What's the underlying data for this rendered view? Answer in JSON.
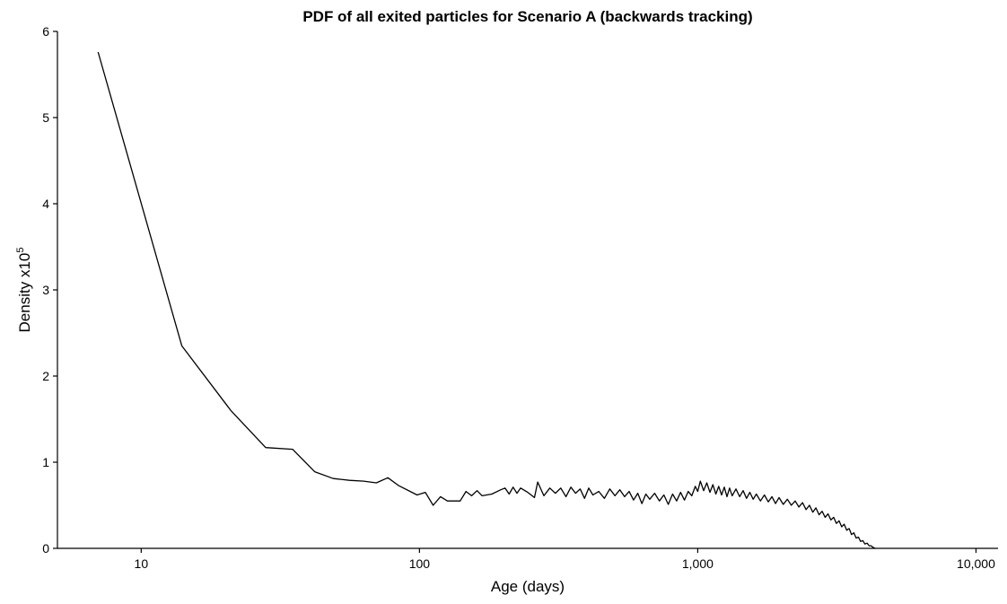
{
  "chart_data": {
    "type": "line",
    "title": "PDF of all exited particles for Scenario A (backwards tracking)",
    "xlabel": "Age (days)",
    "ylabel": "Density  x10",
    "ylabel_superscript": "5",
    "x_scale": "log",
    "xlim": [
      5,
      12000
    ],
    "ylim": [
      0,
      6
    ],
    "x_ticks": [
      {
        "value": 10,
        "label": "10"
      },
      {
        "value": 100,
        "label": "100"
      },
      {
        "value": 1000,
        "label": "1,000"
      },
      {
        "value": 10000,
        "label": "10,000"
      }
    ],
    "y_ticks": [
      {
        "value": 0,
        "label": "0"
      },
      {
        "value": 1,
        "label": "1"
      },
      {
        "value": 2,
        "label": "2"
      },
      {
        "value": 3,
        "label": "3"
      },
      {
        "value": 4,
        "label": "4"
      },
      {
        "value": 5,
        "label": "5"
      },
      {
        "value": 6,
        "label": "6"
      }
    ],
    "grid": false,
    "series": [
      {
        "color": "#000000",
        "points": [
          [
            7,
            5.76
          ],
          [
            14,
            2.35
          ],
          [
            21,
            1.6
          ],
          [
            28,
            1.17
          ],
          [
            35,
            1.15
          ],
          [
            42,
            0.89
          ],
          [
            49,
            0.81
          ],
          [
            56,
            0.79
          ],
          [
            63,
            0.78
          ],
          [
            70,
            0.76
          ],
          [
            77,
            0.82
          ],
          [
            84,
            0.73
          ],
          [
            98,
            0.62
          ],
          [
            105,
            0.65
          ],
          [
            112,
            0.5
          ],
          [
            119,
            0.6
          ],
          [
            126,
            0.55
          ],
          [
            140,
            0.55
          ],
          [
            147,
            0.66
          ],
          [
            154,
            0.61
          ],
          [
            161,
            0.67
          ],
          [
            168,
            0.61
          ],
          [
            182,
            0.63
          ],
          [
            196,
            0.68
          ],
          [
            203,
            0.7
          ],
          [
            210,
            0.63
          ],
          [
            217,
            0.71
          ],
          [
            224,
            0.64
          ],
          [
            231,
            0.7
          ],
          [
            245,
            0.65
          ],
          [
            259,
            0.59
          ],
          [
            266,
            0.77
          ],
          [
            280,
            0.61
          ],
          [
            294,
            0.7
          ],
          [
            308,
            0.64
          ],
          [
            322,
            0.7
          ],
          [
            336,
            0.6
          ],
          [
            350,
            0.71
          ],
          [
            364,
            0.64
          ],
          [
            378,
            0.69
          ],
          [
            392,
            0.58
          ],
          [
            406,
            0.7
          ],
          [
            420,
            0.62
          ],
          [
            441,
            0.66
          ],
          [
            462,
            0.58
          ],
          [
            483,
            0.69
          ],
          [
            504,
            0.61
          ],
          [
            525,
            0.68
          ],
          [
            546,
            0.6
          ],
          [
            567,
            0.66
          ],
          [
            588,
            0.56
          ],
          [
            609,
            0.64
          ],
          [
            630,
            0.52
          ],
          [
            651,
            0.63
          ],
          [
            672,
            0.57
          ],
          [
            700,
            0.64
          ],
          [
            728,
            0.55
          ],
          [
            756,
            0.62
          ],
          [
            784,
            0.51
          ],
          [
            812,
            0.63
          ],
          [
            840,
            0.55
          ],
          [
            868,
            0.65
          ],
          [
            896,
            0.56
          ],
          [
            924,
            0.66
          ],
          [
            952,
            0.61
          ],
          [
            980,
            0.72
          ],
          [
            1000,
            0.66
          ],
          [
            1022,
            0.78
          ],
          [
            1050,
            0.67
          ],
          [
            1078,
            0.76
          ],
          [
            1106,
            0.65
          ],
          [
            1134,
            0.74
          ],
          [
            1162,
            0.63
          ],
          [
            1190,
            0.72
          ],
          [
            1218,
            0.62
          ],
          [
            1246,
            0.71
          ],
          [
            1274,
            0.6
          ],
          [
            1302,
            0.7
          ],
          [
            1330,
            0.61
          ],
          [
            1372,
            0.69
          ],
          [
            1414,
            0.6
          ],
          [
            1456,
            0.67
          ],
          [
            1498,
            0.58
          ],
          [
            1540,
            0.65
          ],
          [
            1582,
            0.57
          ],
          [
            1624,
            0.63
          ],
          [
            1680,
            0.55
          ],
          [
            1736,
            0.62
          ],
          [
            1792,
            0.54
          ],
          [
            1848,
            0.6
          ],
          [
            1904,
            0.52
          ],
          [
            1960,
            0.59
          ],
          [
            2030,
            0.51
          ],
          [
            2100,
            0.57
          ],
          [
            2170,
            0.5
          ],
          [
            2240,
            0.55
          ],
          [
            2310,
            0.48
          ],
          [
            2380,
            0.53
          ],
          [
            2450,
            0.45
          ],
          [
            2520,
            0.5
          ],
          [
            2590,
            0.42
          ],
          [
            2660,
            0.47
          ],
          [
            2730,
            0.39
          ],
          [
            2800,
            0.43
          ],
          [
            2870,
            0.36
          ],
          [
            2940,
            0.4
          ],
          [
            3010,
            0.33
          ],
          [
            3080,
            0.36
          ],
          [
            3150,
            0.29
          ],
          [
            3220,
            0.32
          ],
          [
            3290,
            0.25
          ],
          [
            3360,
            0.28
          ],
          [
            3430,
            0.21
          ],
          [
            3500,
            0.23
          ],
          [
            3570,
            0.16
          ],
          [
            3640,
            0.18
          ],
          [
            3710,
            0.12
          ],
          [
            3780,
            0.13
          ],
          [
            3850,
            0.08
          ],
          [
            3920,
            0.09
          ],
          [
            3990,
            0.05
          ],
          [
            4060,
            0.06
          ],
          [
            4130,
            0.03
          ],
          [
            4200,
            0.03
          ],
          [
            4270,
            0.01
          ],
          [
            4340,
            0.0
          ]
        ]
      }
    ]
  }
}
